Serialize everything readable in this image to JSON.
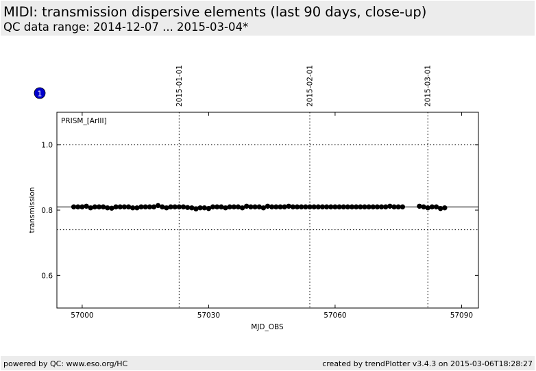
{
  "header": {
    "title": "MIDI: transmission dispersive elements (last 90 days, close-up)",
    "subtitle": "QC data range: 2014-12-07 ... 2015-03-04*"
  },
  "footer": {
    "left": "powered by QC: www.eso.org/HC",
    "right": "created by trendPlotter v3.4.3 on 2015-03-06T18:28:27"
  },
  "marker": {
    "label": "1",
    "color": "#0000cc"
  },
  "chart_data": {
    "type": "scatter",
    "xlabel": "MJD_OBS",
    "ylabel": "transmission",
    "xlim": [
      56994,
      57094
    ],
    "ylim": [
      0.5,
      1.1
    ],
    "xticks": [
      57000,
      57030,
      57060,
      57090
    ],
    "yticks": [
      0.6,
      0.8,
      1.0
    ],
    "legend": "PRISM_[ArIII]",
    "reference_lines": {
      "mean": 0.81,
      "upper": 1.0,
      "lower": 0.74
    },
    "date_markers": [
      {
        "label": "2015-01-01",
        "x": 57023
      },
      {
        "label": "2015-02-01",
        "x": 57054
      },
      {
        "label": "2015-03-01",
        "x": 57082
      }
    ],
    "point_color": "#000000",
    "series": [
      {
        "x": [
          56998,
          56999,
          57000,
          57001,
          57002,
          57003,
          57004,
          57005,
          57006,
          57007,
          57008,
          57009,
          57010,
          57011,
          57012,
          57013,
          57014,
          57015,
          57016,
          57017,
          57018,
          57019,
          57020,
          57021,
          57022,
          57023,
          57024,
          57025,
          57026,
          57027,
          57028,
          57029,
          57030,
          57031,
          57032,
          57033,
          57034,
          57035,
          57036,
          57037,
          57038,
          57039,
          57040,
          57041,
          57042,
          57043,
          57044,
          57045,
          57046,
          57047,
          57048,
          57049,
          57050,
          57051,
          57052,
          57053,
          57054,
          57055,
          57056,
          57057,
          57058,
          57059,
          57060,
          57061,
          57062,
          57063,
          57064,
          57065,
          57066,
          57067,
          57068,
          57069,
          57070,
          57071,
          57072,
          57073,
          57074,
          57075,
          57076,
          57080,
          57081,
          57082,
          57083,
          57084,
          57085,
          57086
        ],
        "y": [
          0.81,
          0.81,
          0.81,
          0.812,
          0.807,
          0.81,
          0.81,
          0.81,
          0.807,
          0.806,
          0.81,
          0.81,
          0.81,
          0.81,
          0.807,
          0.807,
          0.81,
          0.81,
          0.81,
          0.81,
          0.814,
          0.81,
          0.807,
          0.81,
          0.81,
          0.81,
          0.81,
          0.808,
          0.807,
          0.804,
          0.807,
          0.807,
          0.805,
          0.81,
          0.81,
          0.81,
          0.807,
          0.81,
          0.81,
          0.81,
          0.807,
          0.812,
          0.81,
          0.81,
          0.81,
          0.807,
          0.812,
          0.81,
          0.81,
          0.81,
          0.81,
          0.812,
          0.81,
          0.81,
          0.81,
          0.81,
          0.81,
          0.81,
          0.81,
          0.81,
          0.81,
          0.81,
          0.81,
          0.81,
          0.81,
          0.81,
          0.81,
          0.81,
          0.81,
          0.81,
          0.81,
          0.81,
          0.81,
          0.81,
          0.81,
          0.812,
          0.81,
          0.81,
          0.81,
          0.812,
          0.81,
          0.807,
          0.81,
          0.81,
          0.805,
          0.807
        ]
      }
    ]
  }
}
